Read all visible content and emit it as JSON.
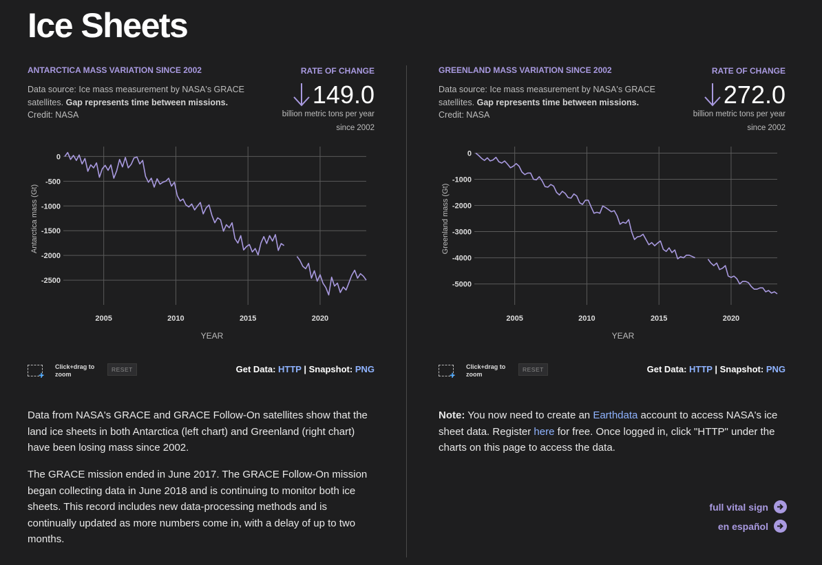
{
  "page_title": "Ice Sheets",
  "colors": {
    "accent": "#a99ae0",
    "link": "#8fb3ff",
    "line": "#a99ae0",
    "background": "#1e1e1f"
  },
  "antarctica": {
    "title": "ANTARCTICA MASS VARIATION SINCE 2002",
    "source_plain": "Data source: Ice mass measurement by NASA's GRACE satellites.",
    "source_bold": "Gap represents time between missions.",
    "credit": "Credit: NASA",
    "rate_label": "RATE OF CHANGE",
    "rate_icon": "arrow-down-icon",
    "rate_value": "149.0",
    "rate_unit": "billion metric tons per year since 2002",
    "zoom_hint": "Click+drag to zoom",
    "reset_label": "RESET",
    "get_data_label": "Get Data:",
    "http_label": "HTTP",
    "separator": "|",
    "snapshot_label": "Snapshot:",
    "png_label": "PNG"
  },
  "greenland": {
    "title": "GREENLAND MASS VARIATION SINCE 2002",
    "source_plain": "Data source: Ice mass measurement by NASA's GRACE satellites.",
    "source_bold": "Gap represents time between missions.",
    "credit": "Credit: NASA",
    "rate_label": "RATE OF CHANGE",
    "rate_icon": "arrow-down-icon",
    "rate_value": "272.0",
    "rate_unit": "billion metric tons per year since 2002",
    "zoom_hint": "Click+drag to zoom",
    "reset_label": "RESET",
    "get_data_label": "Get Data:",
    "http_label": "HTTP",
    "separator": "|",
    "snapshot_label": "Snapshot:",
    "png_label": "PNG"
  },
  "left_text": {
    "p1": "Data from NASA's GRACE and GRACE Follow-On satellites show that the land ice sheets in both Antarctica (left chart) and Greenland (right chart) have been losing mass since 2002.",
    "p2": "The GRACE mission ended in June 2017. The GRACE Follow-On mission began collecting data in June 2018 and is continuing to monitor both ice sheets. This record includes new data-processing methods and is continually updated as more numbers come in, with a delay of up to two months."
  },
  "note": {
    "label": "Note:",
    "t1": " You now need to create an ",
    "link1": "Earthdata",
    "t2": " account to access NASA's ice sheet data. Register ",
    "link2": "here",
    "t3": " for free. Once logged in, click \"HTTP\" under the charts on this page to access the data."
  },
  "links": {
    "full_vital_sign": "full vital sign",
    "en_espanol": "en español",
    "icon": "arrow-right-circle-icon"
  },
  "chart_data": [
    {
      "type": "line",
      "name": "antarctica",
      "xlabel": "YEAR",
      "ylabel": "Antarctica mass (Gt)",
      "xlim": [
        2002.2,
        2023.2
      ],
      "ylim": [
        -3000,
        200
      ],
      "xticks": [
        2005,
        2010,
        2015,
        2020
      ],
      "yticks": [
        0,
        -500,
        -1000,
        -1500,
        -2000,
        -2500
      ],
      "grid": true,
      "gap": [
        2017.5,
        2018.4
      ],
      "x": [
        2002.3,
        2002.5,
        2002.7,
        2002.9,
        2003.1,
        2003.3,
        2003.5,
        2003.7,
        2003.9,
        2004.1,
        2004.3,
        2004.5,
        2004.7,
        2004.9,
        2005.1,
        2005.3,
        2005.5,
        2005.7,
        2005.9,
        2006.1,
        2006.3,
        2006.5,
        2006.7,
        2006.9,
        2007.1,
        2007.3,
        2007.5,
        2007.7,
        2007.9,
        2008.1,
        2008.3,
        2008.5,
        2008.7,
        2008.9,
        2009.1,
        2009.3,
        2009.5,
        2009.7,
        2009.9,
        2010.1,
        2010.3,
        2010.5,
        2010.7,
        2010.9,
        2011.1,
        2011.3,
        2011.5,
        2011.7,
        2011.9,
        2012.1,
        2012.3,
        2012.5,
        2012.7,
        2012.9,
        2013.1,
        2013.3,
        2013.5,
        2013.7,
        2013.9,
        2014.1,
        2014.3,
        2014.5,
        2014.7,
        2014.9,
        2015.1,
        2015.3,
        2015.5,
        2015.7,
        2015.9,
        2016.1,
        2016.3,
        2016.5,
        2016.7,
        2016.9,
        2017.1,
        2017.3,
        2017.5,
        2018.4,
        2018.6,
        2018.8,
        2019.0,
        2019.2,
        2019.4,
        2019.6,
        2019.8,
        2020.0,
        2020.2,
        2020.4,
        2020.6,
        2020.8,
        2021.0,
        2021.2,
        2021.4,
        2021.6,
        2021.8,
        2022.0,
        2022.2,
        2022.4,
        2022.6,
        2022.8,
        2023.0,
        2023.2
      ],
      "values": [
        0,
        80,
        -60,
        20,
        -80,
        30,
        -150,
        -40,
        -300,
        -170,
        -230,
        -130,
        -420,
        -250,
        -180,
        -280,
        -170,
        -440,
        -290,
        -60,
        -210,
        -20,
        -230,
        -160,
        -30,
        -10,
        -150,
        -80,
        -400,
        -520,
        -440,
        -620,
        -450,
        -560,
        -520,
        -500,
        -440,
        -600,
        -520,
        -790,
        -900,
        -860,
        -980,
        -1020,
        -960,
        -1080,
        -1000,
        -930,
        -1160,
        -1040,
        -980,
        -1190,
        -1340,
        -1240,
        -1280,
        -1510,
        -1380,
        -1440,
        -1340,
        -1660,
        -1750,
        -1600,
        -1890,
        -1820,
        -1780,
        -1930,
        -1860,
        -1990,
        -1750,
        -1620,
        -1760,
        -1600,
        -1710,
        -1580,
        -1900,
        -1760,
        -1800,
        -2020,
        -2100,
        -2220,
        -2270,
        -2160,
        -2460,
        -2310,
        -2520,
        -2390,
        -2560,
        -2650,
        -2800,
        -2440,
        -2620,
        -2560,
        -2750,
        -2640,
        -2700,
        -2550,
        -2400,
        -2300,
        -2460,
        -2370,
        -2420,
        -2500
      ]
    },
    {
      "type": "line",
      "name": "greenland",
      "xlabel": "YEAR",
      "ylabel": "Greenland mass (Gt)",
      "xlim": [
        2002.2,
        2023.2
      ],
      "ylim": [
        -5800,
        250
      ],
      "xticks": [
        2005,
        2010,
        2015,
        2020
      ],
      "yticks": [
        0,
        -1000,
        -2000,
        -3000,
        -4000,
        -5000
      ],
      "grid": true,
      "gap": [
        2017.5,
        2018.4
      ],
      "x": [
        2002.3,
        2002.5,
        2002.7,
        2002.9,
        2003.1,
        2003.3,
        2003.5,
        2003.7,
        2003.9,
        2004.1,
        2004.3,
        2004.5,
        2004.7,
        2004.9,
        2005.1,
        2005.3,
        2005.5,
        2005.7,
        2005.9,
        2006.1,
        2006.3,
        2006.5,
        2006.7,
        2006.9,
        2007.1,
        2007.3,
        2007.5,
        2007.7,
        2007.9,
        2008.1,
        2008.3,
        2008.5,
        2008.7,
        2008.9,
        2009.1,
        2009.3,
        2009.5,
        2009.7,
        2009.9,
        2010.1,
        2010.3,
        2010.5,
        2010.7,
        2010.9,
        2011.1,
        2011.3,
        2011.5,
        2011.7,
        2011.9,
        2012.1,
        2012.3,
        2012.5,
        2012.7,
        2012.9,
        2013.1,
        2013.3,
        2013.5,
        2013.7,
        2013.9,
        2014.1,
        2014.3,
        2014.5,
        2014.7,
        2014.9,
        2015.1,
        2015.3,
        2015.5,
        2015.7,
        2015.9,
        2016.1,
        2016.3,
        2016.5,
        2016.7,
        2016.9,
        2017.1,
        2017.3,
        2017.5,
        2018.4,
        2018.6,
        2018.8,
        2019.0,
        2019.2,
        2019.4,
        2019.6,
        2019.8,
        2020.0,
        2020.2,
        2020.4,
        2020.6,
        2020.8,
        2021.0,
        2021.2,
        2021.4,
        2021.6,
        2021.8,
        2022.0,
        2022.2,
        2022.4,
        2022.6,
        2022.8,
        2023.0,
        2023.2
      ],
      "values": [
        0,
        -90,
        -200,
        -280,
        -180,
        -300,
        -260,
        -160,
        -330,
        -380,
        -300,
        -420,
        -560,
        -500,
        -400,
        -500,
        -720,
        -820,
        -760,
        -760,
        -1000,
        -1020,
        -900,
        -1060,
        -1280,
        -1300,
        -1200,
        -1260,
        -1500,
        -1600,
        -1460,
        -1540,
        -1700,
        -1720,
        -1560,
        -1640,
        -1900,
        -1960,
        -1800,
        -1800,
        -2060,
        -2300,
        -2260,
        -2300,
        -2020,
        -2080,
        -2160,
        -2240,
        -2200,
        -2400,
        -2720,
        -2640,
        -2680,
        -2540,
        -3000,
        -3300,
        -3200,
        -3180,
        -3100,
        -3300,
        -3500,
        -3420,
        -3540,
        -3440,
        -3360,
        -3680,
        -3760,
        -3620,
        -3800,
        -3700,
        -4040,
        -3960,
        -4000,
        -3900,
        -3900,
        -3950,
        -4000,
        -4050,
        -4200,
        -4300,
        -4200,
        -4450,
        -4400,
        -4300,
        -4700,
        -4750,
        -4700,
        -4800,
        -5000,
        -4900,
        -4900,
        -4950,
        -5100,
        -5200,
        -5200,
        -5150,
        -5150,
        -5300,
        -5250,
        -5350,
        -5300,
        -5380
      ]
    }
  ]
}
